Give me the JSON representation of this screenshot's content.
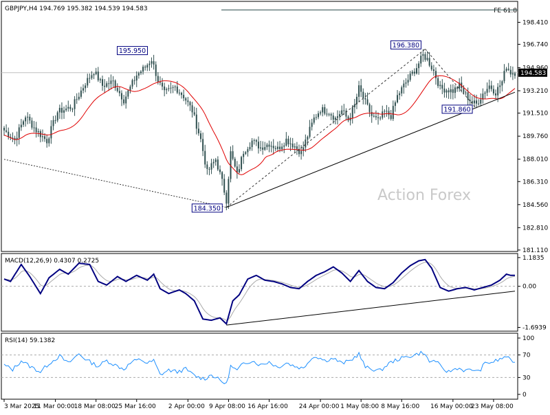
{
  "chart_data": {
    "type": "candlestick",
    "header": "GBPJPY,H4  194.769 195.382 194.539 194.583",
    "watermark": "Action Forex",
    "fe_label": "FE 61.8",
    "fe_level": 199.35,
    "current_price": 194.583,
    "price_ticks": [
      198.41,
      196.74,
      194.96,
      193.21,
      191.51,
      189.76,
      188.01,
      186.31,
      184.56,
      182.81,
      181.11
    ],
    "price_ticks_text": [
      "198.410",
      "196.740",
      "194.960",
      "193.210",
      "191.510",
      "189.760",
      "188.010",
      "186.310",
      "184.560",
      "182.810",
      "181.110"
    ],
    "current_price_text": "194.583",
    "ylim": [
      181.0,
      200.0
    ],
    "x_ticks": [
      {
        "i": 0,
        "label": "3 Mar 2025"
      },
      {
        "i": 24,
        "label": "11 Mar 00:00"
      },
      {
        "i": 43,
        "label": "18 Mar 08:00"
      },
      {
        "i": 62,
        "label": "25 Mar 16:00"
      },
      {
        "i": 86,
        "label": "2 Apr 00:00"
      },
      {
        "i": 105,
        "label": "9 Apr 08:00"
      },
      {
        "i": 124,
        "label": "16 Apr 16:00"
      },
      {
        "i": 148,
        "label": "24 Apr 00:00"
      },
      {
        "i": 167,
        "label": "1 May 08:00"
      },
      {
        "i": 186,
        "label": "8 May 16:00"
      },
      {
        "i": 210,
        "label": "16 May 00:00"
      },
      {
        "i": 229,
        "label": "23 May 08:00"
      }
    ],
    "annotations": [
      {
        "label": "195.950",
        "i": 69,
        "price": 195.95
      },
      {
        "label": "184.350",
        "i": 104,
        "price": 184.35
      },
      {
        "label": "196.380",
        "i": 197,
        "price": 196.38
      },
      {
        "label": "191.860",
        "i": 221,
        "price": 191.86
      }
    ],
    "close_anchors": [
      [
        0,
        190.2
      ],
      [
        5,
        189.5
      ],
      [
        10,
        191.3
      ],
      [
        15,
        190.2
      ],
      [
        20,
        189.4
      ],
      [
        25,
        191.6
      ],
      [
        32,
        192.0
      ],
      [
        38,
        193.8
      ],
      [
        42,
        194.7
      ],
      [
        46,
        193.6
      ],
      [
        51,
        193.9
      ],
      [
        56,
        192.5
      ],
      [
        62,
        194.4
      ],
      [
        66,
        195.0
      ],
      [
        69,
        195.6
      ],
      [
        72,
        194.0
      ],
      [
        75,
        193.0
      ],
      [
        80,
        193.5
      ],
      [
        84,
        192.8
      ],
      [
        88,
        191.7
      ],
      [
        92,
        189.5
      ],
      [
        95,
        187.0
      ],
      [
        99,
        188.0
      ],
      [
        102,
        186.3
      ],
      [
        104,
        184.9
      ],
      [
        106,
        188.5
      ],
      [
        109,
        186.8
      ],
      [
        112,
        188.6
      ],
      [
        116,
        189.4
      ],
      [
        120,
        188.9
      ],
      [
        124,
        189.2
      ],
      [
        128,
        188.8
      ],
      [
        132,
        189.5
      ],
      [
        136,
        189.0
      ],
      [
        139,
        188.5
      ],
      [
        142,
        189.8
      ],
      [
        145,
        191.1
      ],
      [
        148,
        191.8
      ],
      [
        152,
        191.6
      ],
      [
        155,
        191.1
      ],
      [
        158,
        191.7
      ],
      [
        161,
        191.0
      ],
      [
        164,
        192.1
      ],
      [
        166,
        193.4
      ],
      [
        169,
        192.3
      ],
      [
        172,
        191.3
      ],
      [
        175,
        190.9
      ],
      [
        178,
        191.6
      ],
      [
        181,
        191.3
      ],
      [
        184,
        192.8
      ],
      [
        187,
        193.6
      ],
      [
        190,
        194.3
      ],
      [
        193,
        195.0
      ],
      [
        196,
        195.9
      ],
      [
        198,
        195.6
      ],
      [
        201,
        194.7
      ],
      [
        204,
        193.4
      ],
      [
        207,
        193.3
      ],
      [
        210,
        193.2
      ],
      [
        213,
        193.6
      ],
      [
        216,
        192.9
      ],
      [
        219,
        192.3
      ],
      [
        221,
        192.2
      ],
      [
        224,
        193.0
      ],
      [
        227,
        193.6
      ],
      [
        230,
        193.1
      ],
      [
        233,
        193.9
      ],
      [
        235,
        195.1
      ],
      [
        237,
        194.6
      ]
    ],
    "triangle_lines": [
      {
        "from": {
          "i": 0,
          "price": 188.0
        },
        "to": {
          "i": 104,
          "price": 184.35
        },
        "style": "dotted"
      },
      {
        "from": {
          "i": 104,
          "price": 184.35
        },
        "to": {
          "i": 197,
          "price": 196.38
        },
        "style": "dashed"
      },
      {
        "from": {
          "i": 197,
          "price": 196.38
        },
        "to": {
          "i": 221,
          "price": 191.86
        },
        "style": "dashed"
      },
      {
        "from": {
          "i": 104,
          "price": 184.35
        },
        "to": {
          "i": 239,
          "price": 193.1
        },
        "style": "solid"
      }
    ],
    "macd": {
      "label": "MACD(12,26,9) 0.4307 0.2725",
      "ticks_text": [
        "1.1835",
        "0.00",
        "-1.6939"
      ],
      "ticks": [
        1.1835,
        0.0,
        -1.6939
      ],
      "ylim": [
        -1.85,
        1.35
      ],
      "anchors": [
        [
          0,
          0.3
        ],
        [
          3,
          0.2
        ],
        [
          8,
          0.9
        ],
        [
          12,
          0.4
        ],
        [
          17,
          -0.3
        ],
        [
          21,
          0.35
        ],
        [
          26,
          0.7
        ],
        [
          30,
          0.5
        ],
        [
          35,
          0.95
        ],
        [
          40,
          0.9
        ],
        [
          44,
          0.2
        ],
        [
          48,
          0.05
        ],
        [
          53,
          0.4
        ],
        [
          57,
          0.2
        ],
        [
          62,
          0.45
        ],
        [
          67,
          0.25
        ],
        [
          70,
          0.5
        ],
        [
          73,
          -0.1
        ],
        [
          77,
          -0.3
        ],
        [
          82,
          -0.15
        ],
        [
          85,
          -0.3
        ],
        [
          89,
          -0.6
        ],
        [
          93,
          -1.35
        ],
        [
          97,
          -1.4
        ],
        [
          101,
          -1.3
        ],
        [
          104,
          -1.55
        ],
        [
          107,
          -0.6
        ],
        [
          110,
          -0.35
        ],
        [
          114,
          0.3
        ],
        [
          118,
          0.45
        ],
        [
          122,
          0.25
        ],
        [
          126,
          0.2
        ],
        [
          130,
          0.1
        ],
        [
          134,
          -0.05
        ],
        [
          138,
          -0.1
        ],
        [
          142,
          0.2
        ],
        [
          146,
          0.45
        ],
        [
          150,
          0.6
        ],
        [
          154,
          0.8
        ],
        [
          158,
          0.55
        ],
        [
          162,
          0.2
        ],
        [
          166,
          0.65
        ],
        [
          170,
          0.2
        ],
        [
          174,
          -0.05
        ],
        [
          178,
          -0.1
        ],
        [
          182,
          0.15
        ],
        [
          186,
          0.55
        ],
        [
          190,
          0.85
        ],
        [
          194,
          1.05
        ],
        [
          197,
          1.1
        ],
        [
          200,
          0.75
        ],
        [
          204,
          -0.05
        ],
        [
          208,
          -0.2
        ],
        [
          212,
          -0.1
        ],
        [
          216,
          -0.05
        ],
        [
          220,
          -0.15
        ],
        [
          224,
          -0.05
        ],
        [
          228,
          0.05
        ],
        [
          232,
          0.25
        ],
        [
          235,
          0.5
        ],
        [
          237,
          0.45
        ]
      ],
      "trend": {
        "from": {
          "i": 104,
          "value": -1.6
        },
        "to": {
          "i": 239,
          "value": -0.2
        }
      }
    },
    "rsi": {
      "label": "RSI(14) 59.1382",
      "ticks": [
        100,
        70,
        30,
        0
      ],
      "ticks_text": [
        "100",
        "70",
        "30",
        "0"
      ],
      "levels": [
        70,
        30
      ],
      "anchors": [
        [
          0,
          52
        ],
        [
          4,
          44
        ],
        [
          8,
          60
        ],
        [
          12,
          50
        ],
        [
          17,
          40
        ],
        [
          21,
          55
        ],
        [
          26,
          68
        ],
        [
          30,
          55
        ],
        [
          35,
          72
        ],
        [
          39,
          60
        ],
        [
          44,
          50
        ],
        [
          48,
          60
        ],
        [
          52,
          52
        ],
        [
          56,
          45
        ],
        [
          60,
          58
        ],
        [
          64,
          62
        ],
        [
          67,
          55
        ],
        [
          70,
          60
        ],
        [
          73,
          35
        ],
        [
          77,
          43
        ],
        [
          81,
          40
        ],
        [
          85,
          45
        ],
        [
          88,
          36
        ],
        [
          91,
          30
        ],
        [
          94,
          28
        ],
        [
          97,
          35
        ],
        [
          101,
          25
        ],
        [
          104,
          18
        ],
        [
          106,
          50
        ],
        [
          109,
          42
        ],
        [
          112,
          55
        ],
        [
          116,
          60
        ],
        [
          120,
          52
        ],
        [
          124,
          58
        ],
        [
          128,
          48
        ],
        [
          132,
          56
        ],
        [
          136,
          50
        ],
        [
          140,
          46
        ],
        [
          143,
          62
        ],
        [
          146,
          68
        ],
        [
          150,
          60
        ],
        [
          154,
          64
        ],
        [
          158,
          55
        ],
        [
          162,
          60
        ],
        [
          166,
          72
        ],
        [
          169,
          48
        ],
        [
          172,
          45
        ],
        [
          176,
          42
        ],
        [
          180,
          55
        ],
        [
          184,
          62
        ],
        [
          188,
          66
        ],
        [
          192,
          70
        ],
        [
          196,
          75
        ],
        [
          199,
          58
        ],
        [
          202,
          60
        ],
        [
          205,
          45
        ],
        [
          208,
          40
        ],
        [
          212,
          47
        ],
        [
          216,
          42
        ],
        [
          220,
          44
        ],
        [
          222,
          40
        ],
        [
          225,
          55
        ],
        [
          229,
          58
        ],
        [
          232,
          62
        ],
        [
          235,
          68
        ],
        [
          237,
          59
        ]
      ]
    }
  }
}
